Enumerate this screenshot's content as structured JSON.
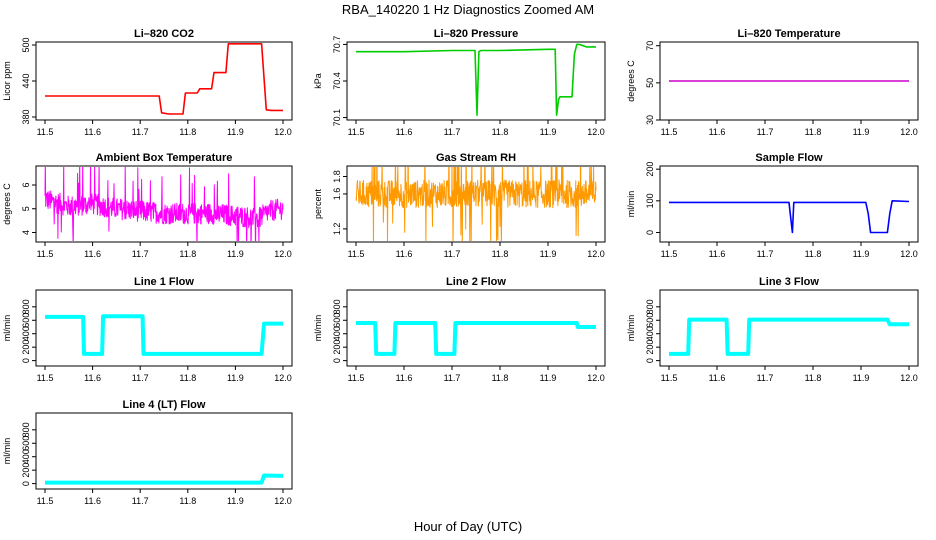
{
  "figure": {
    "title": "RBA_140220  1 Hz Diagnostics Zoomed AM",
    "xlabel": "Hour of Day (UTC)"
  },
  "chart_data": [
    {
      "type": "line",
      "title": "Li–820 CO2",
      "ylabel": "Licor ppm",
      "color": "#ff0000",
      "xlim": [
        11.5,
        12.0
      ],
      "ylim": [
        375,
        505
      ],
      "xticks": [
        11.5,
        11.6,
        11.7,
        11.8,
        11.9,
        12.0
      ],
      "yticks": [
        380,
        440,
        500
      ],
      "x": [
        11.5,
        11.65,
        11.74,
        11.745,
        11.76,
        11.79,
        11.795,
        11.82,
        11.825,
        11.85,
        11.855,
        11.88,
        11.885,
        11.915,
        11.955,
        11.965,
        11.975,
        12.0
      ],
      "y": [
        415,
        415,
        415,
        387,
        385,
        385,
        420,
        420,
        427,
        427,
        454,
        454,
        502,
        502,
        502,
        392,
        391,
        391
      ]
    },
    {
      "type": "line",
      "title": "Li–820 Pressure",
      "ylabel": "kPa",
      "color": "#00cc00",
      "xlim": [
        11.5,
        12.0
      ],
      "ylim": [
        70.08,
        70.72
      ],
      "xticks": [
        11.5,
        11.6,
        11.7,
        11.8,
        11.9,
        12.0
      ],
      "yticks": [
        70.1,
        70.4,
        70.7
      ],
      "x": [
        11.5,
        11.6,
        11.7,
        11.748,
        11.752,
        11.756,
        11.76,
        11.8,
        11.9,
        11.915,
        11.918,
        11.922,
        11.925,
        11.95,
        11.955,
        11.96,
        11.965,
        11.98,
        12.0
      ],
      "y": [
        70.64,
        70.64,
        70.65,
        70.65,
        70.12,
        70.64,
        70.65,
        70.65,
        70.66,
        70.66,
        70.12,
        70.25,
        70.27,
        70.27,
        70.62,
        70.7,
        70.7,
        70.68,
        70.68
      ]
    },
    {
      "type": "line",
      "title": "Li–820 Temperature",
      "ylabel": "degrees C",
      "color": "#cc00cc",
      "xlim": [
        11.5,
        12.0
      ],
      "ylim": [
        30,
        72
      ],
      "xticks": [
        11.5,
        11.6,
        11.7,
        11.8,
        11.9,
        12.0
      ],
      "yticks": [
        30,
        50,
        70
      ],
      "x": [
        11.5,
        12.0
      ],
      "y": [
        51,
        51
      ]
    },
    {
      "type": "line",
      "title": "Ambient Box Temperature",
      "ylabel": "degrees C",
      "color": "#ff00ff",
      "xlim": [
        11.5,
        12.0
      ],
      "ylim": [
        3.6,
        6.8
      ],
      "xticks": [
        11.5,
        11.6,
        11.7,
        11.8,
        11.9,
        12.0
      ],
      "yticks": [
        4.0,
        5.0,
        6.0
      ],
      "x": [
        11.5,
        11.55,
        11.6,
        11.65,
        11.7,
        11.75,
        11.8,
        11.85,
        11.9,
        11.95,
        11.97,
        12.0
      ],
      "y": [
        5.4,
        5.1,
        5.2,
        5.0,
        4.9,
        4.8,
        4.8,
        4.8,
        4.7,
        4.6,
        4.9,
        5.0
      ]
    },
    {
      "type": "line",
      "title": "Gas Stream RH",
      "ylabel": "percent",
      "color": "#ff9900",
      "xlim": [
        11.5,
        12.0
      ],
      "ylim": [
        1.05,
        1.92
      ],
      "xticks": [
        11.5,
        11.6,
        11.7,
        11.8,
        11.9,
        12.0
      ],
      "yticks": [
        1.2,
        1.6,
        1.8
      ],
      "x": [
        11.5,
        11.6,
        11.7,
        11.8,
        11.9,
        12.0
      ],
      "y": [
        1.6,
        1.6,
        1.6,
        1.6,
        1.6,
        1.6
      ]
    },
    {
      "type": "line",
      "title": "Sample Flow",
      "ylabel": "ml/min",
      "color": "#0000ff",
      "xlim": [
        11.5,
        12.0
      ],
      "ylim": [
        -30,
        210
      ],
      "xticks": [
        11.5,
        11.6,
        11.7,
        11.8,
        11.9,
        12.0
      ],
      "yticks": [
        0,
        100,
        200
      ],
      "x": [
        11.5,
        11.75,
        11.753,
        11.757,
        11.76,
        11.91,
        11.915,
        11.92,
        11.955,
        11.96,
        11.965,
        12.0
      ],
      "y": [
        95,
        95,
        55,
        0,
        95,
        95,
        60,
        0,
        0,
        60,
        100,
        98
      ]
    },
    {
      "type": "line",
      "title": "Line 1 Flow",
      "ylabel": "ml/min",
      "color": "#00ffff",
      "xlim": [
        11.5,
        12.0
      ],
      "ylim": [
        -80,
        1050
      ],
      "xticks": [
        11.5,
        11.6,
        11.7,
        11.8,
        11.9,
        12.0
      ],
      "yticks": [
        0,
        200,
        400,
        600,
        800
      ],
      "x": [
        11.5,
        11.58,
        11.582,
        11.62,
        11.622,
        11.705,
        11.707,
        11.955,
        11.96,
        12.0
      ],
      "y": [
        650,
        650,
        100,
        100,
        660,
        660,
        100,
        100,
        550,
        550
      ]
    },
    {
      "type": "line",
      "title": "Line 2 Flow",
      "ylabel": "ml/min",
      "color": "#00ffff",
      "xlim": [
        11.5,
        12.0
      ],
      "ylim": [
        -80,
        1050
      ],
      "xticks": [
        11.5,
        11.6,
        11.7,
        11.8,
        11.9,
        12.0
      ],
      "yticks": [
        0,
        200,
        400,
        600,
        800
      ],
      "x": [
        11.5,
        11.54,
        11.542,
        11.58,
        11.582,
        11.665,
        11.667,
        11.705,
        11.707,
        11.96,
        11.962,
        12.0
      ],
      "y": [
        560,
        560,
        100,
        100,
        560,
        560,
        100,
        100,
        560,
        560,
        500,
        500
      ]
    },
    {
      "type": "line",
      "title": "Line 3 Flow",
      "ylabel": "ml/min",
      "color": "#00ffff",
      "xlim": [
        11.5,
        12.0
      ],
      "ylim": [
        -80,
        1050
      ],
      "xticks": [
        11.5,
        11.6,
        11.7,
        11.8,
        11.9,
        12.0
      ],
      "yticks": [
        0,
        200,
        400,
        600,
        800
      ],
      "x": [
        11.5,
        11.54,
        11.542,
        11.62,
        11.622,
        11.665,
        11.667,
        11.955,
        11.96,
        12.0
      ],
      "y": [
        100,
        100,
        610,
        610,
        100,
        100,
        610,
        610,
        540,
        540
      ]
    },
    {
      "type": "line",
      "title": "Line 4 (LT) Flow",
      "ylabel": "ml/min",
      "color": "#00ffff",
      "xlim": [
        11.5,
        12.0
      ],
      "ylim": [
        -80,
        1050
      ],
      "xticks": [
        11.5,
        11.6,
        11.7,
        11.8,
        11.9,
        12.0
      ],
      "yticks": [
        0,
        200,
        400,
        600,
        800
      ],
      "x": [
        11.5,
        11.955,
        11.96,
        12.0
      ],
      "y": [
        15,
        15,
        120,
        115
      ]
    }
  ]
}
